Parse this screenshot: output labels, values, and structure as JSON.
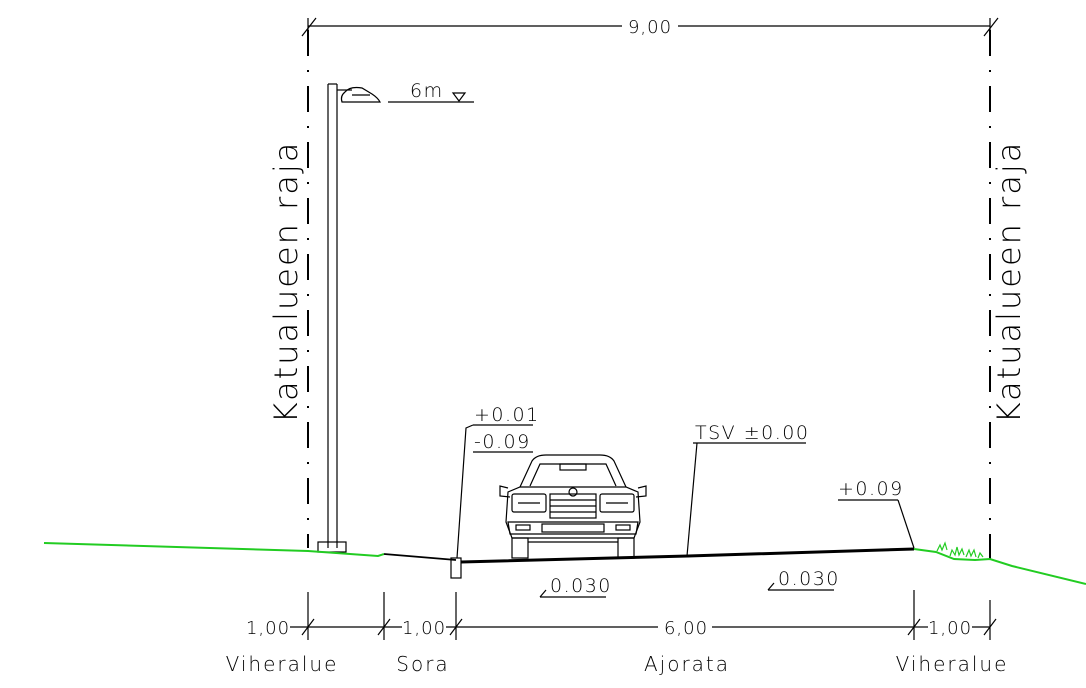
{
  "total_width_label": "9,00",
  "lamp_height_label": "6m",
  "boundary_label_left": "Katualueen raja",
  "boundary_label_right": "Katualueen raja",
  "curb_top_label": "+0.01",
  "curb_bottom_label": "-0.09",
  "road_level_label": "TSV ±0.00",
  "right_edge_label": "+0.09",
  "slope_left_label": "0.030",
  "slope_right_label": "0.030",
  "segments": [
    {
      "width": "1,00",
      "zone": "Viheralue"
    },
    {
      "width": "1,00",
      "zone": "Sora"
    },
    {
      "width": "6,00",
      "zone": "Ajorata"
    },
    {
      "width": "1,00",
      "zone": "Viheralue"
    }
  ],
  "colors": {
    "line": "#000000",
    "green": "#22cc22"
  }
}
